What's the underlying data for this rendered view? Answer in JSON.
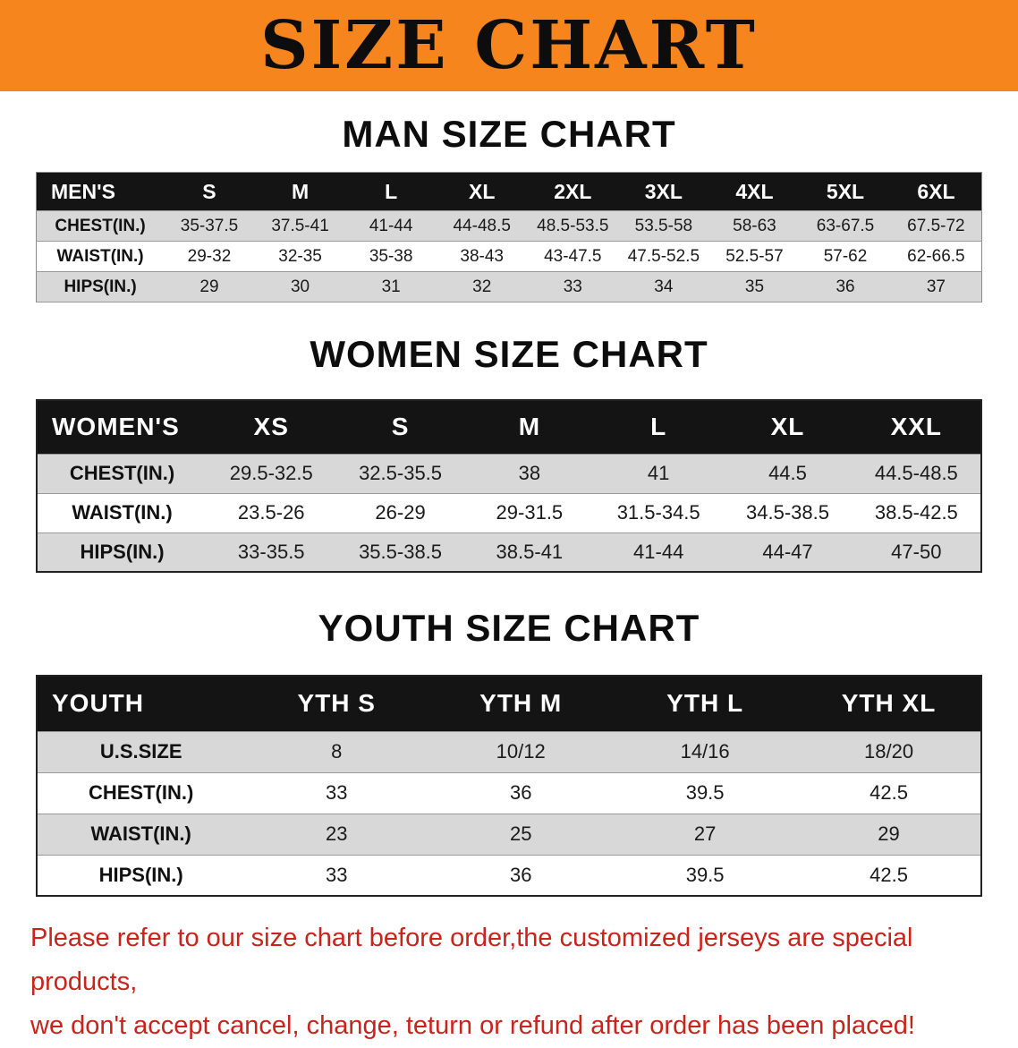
{
  "banner": {
    "title": "SIZE CHART"
  },
  "colors": {
    "banner-bg": "#f6851d",
    "header-bg": "#141414",
    "row-alt": "#d8d8d8",
    "disclaimer": "#c9231c",
    "text": "#111111"
  },
  "chart_data": [
    {
      "type": "table",
      "title": "MAN SIZE CHART",
      "headers": [
        "MEN'S",
        "S",
        "M",
        "L",
        "XL",
        "2XL",
        "3XL",
        "4XL",
        "5XL",
        "6XL"
      ],
      "rows": [
        [
          "CHEST(IN.)",
          "35-37.5",
          "37.5-41",
          "41-44",
          "44-48.5",
          "48.5-53.5",
          "53.5-58",
          "58-63",
          "63-67.5",
          "67.5-72"
        ],
        [
          "WAIST(IN.)",
          "29-32",
          "32-35",
          "35-38",
          "38-43",
          "43-47.5",
          "47.5-52.5",
          "52.5-57",
          "57-62",
          "62-66.5"
        ],
        [
          "HIPS(IN.)",
          "29",
          "30",
          "31",
          "32",
          "33",
          "34",
          "35",
          "36",
          "37"
        ]
      ]
    },
    {
      "type": "table",
      "title": "WOMEN SIZE CHART",
      "headers": [
        "WOMEN'S",
        "XS",
        "S",
        "M",
        "L",
        "XL",
        "XXL"
      ],
      "rows": [
        [
          "CHEST(IN.)",
          "29.5-32.5",
          "32.5-35.5",
          "38",
          "41",
          "44.5",
          "44.5-48.5"
        ],
        [
          "WAIST(IN.)",
          "23.5-26",
          "26-29",
          "29-31.5",
          "31.5-34.5",
          "34.5-38.5",
          "38.5-42.5"
        ],
        [
          "HIPS(IN.)",
          "33-35.5",
          "35.5-38.5",
          "38.5-41",
          "41-44",
          "44-47",
          "47-50"
        ]
      ]
    },
    {
      "type": "table",
      "title": "YOUTH SIZE CHART",
      "headers": [
        "YOUTH",
        "YTH S",
        "YTH M",
        "YTH L",
        "YTH XL"
      ],
      "rows": [
        [
          "U.S.SIZE",
          "8",
          "10/12",
          "14/16",
          "18/20"
        ],
        [
          "CHEST(IN.)",
          "33",
          "36",
          "39.5",
          "42.5"
        ],
        [
          "WAIST(IN.)",
          "23",
          "25",
          "27",
          "29"
        ],
        [
          "HIPS(IN.)",
          "33",
          "36",
          "39.5",
          "42.5"
        ]
      ]
    }
  ],
  "disclaimer": {
    "line1": "Please refer to our size chart before order,the customized jerseys are special products,",
    "line2": "we don't accept cancel, change, teturn or refund after order has been placed!"
  }
}
